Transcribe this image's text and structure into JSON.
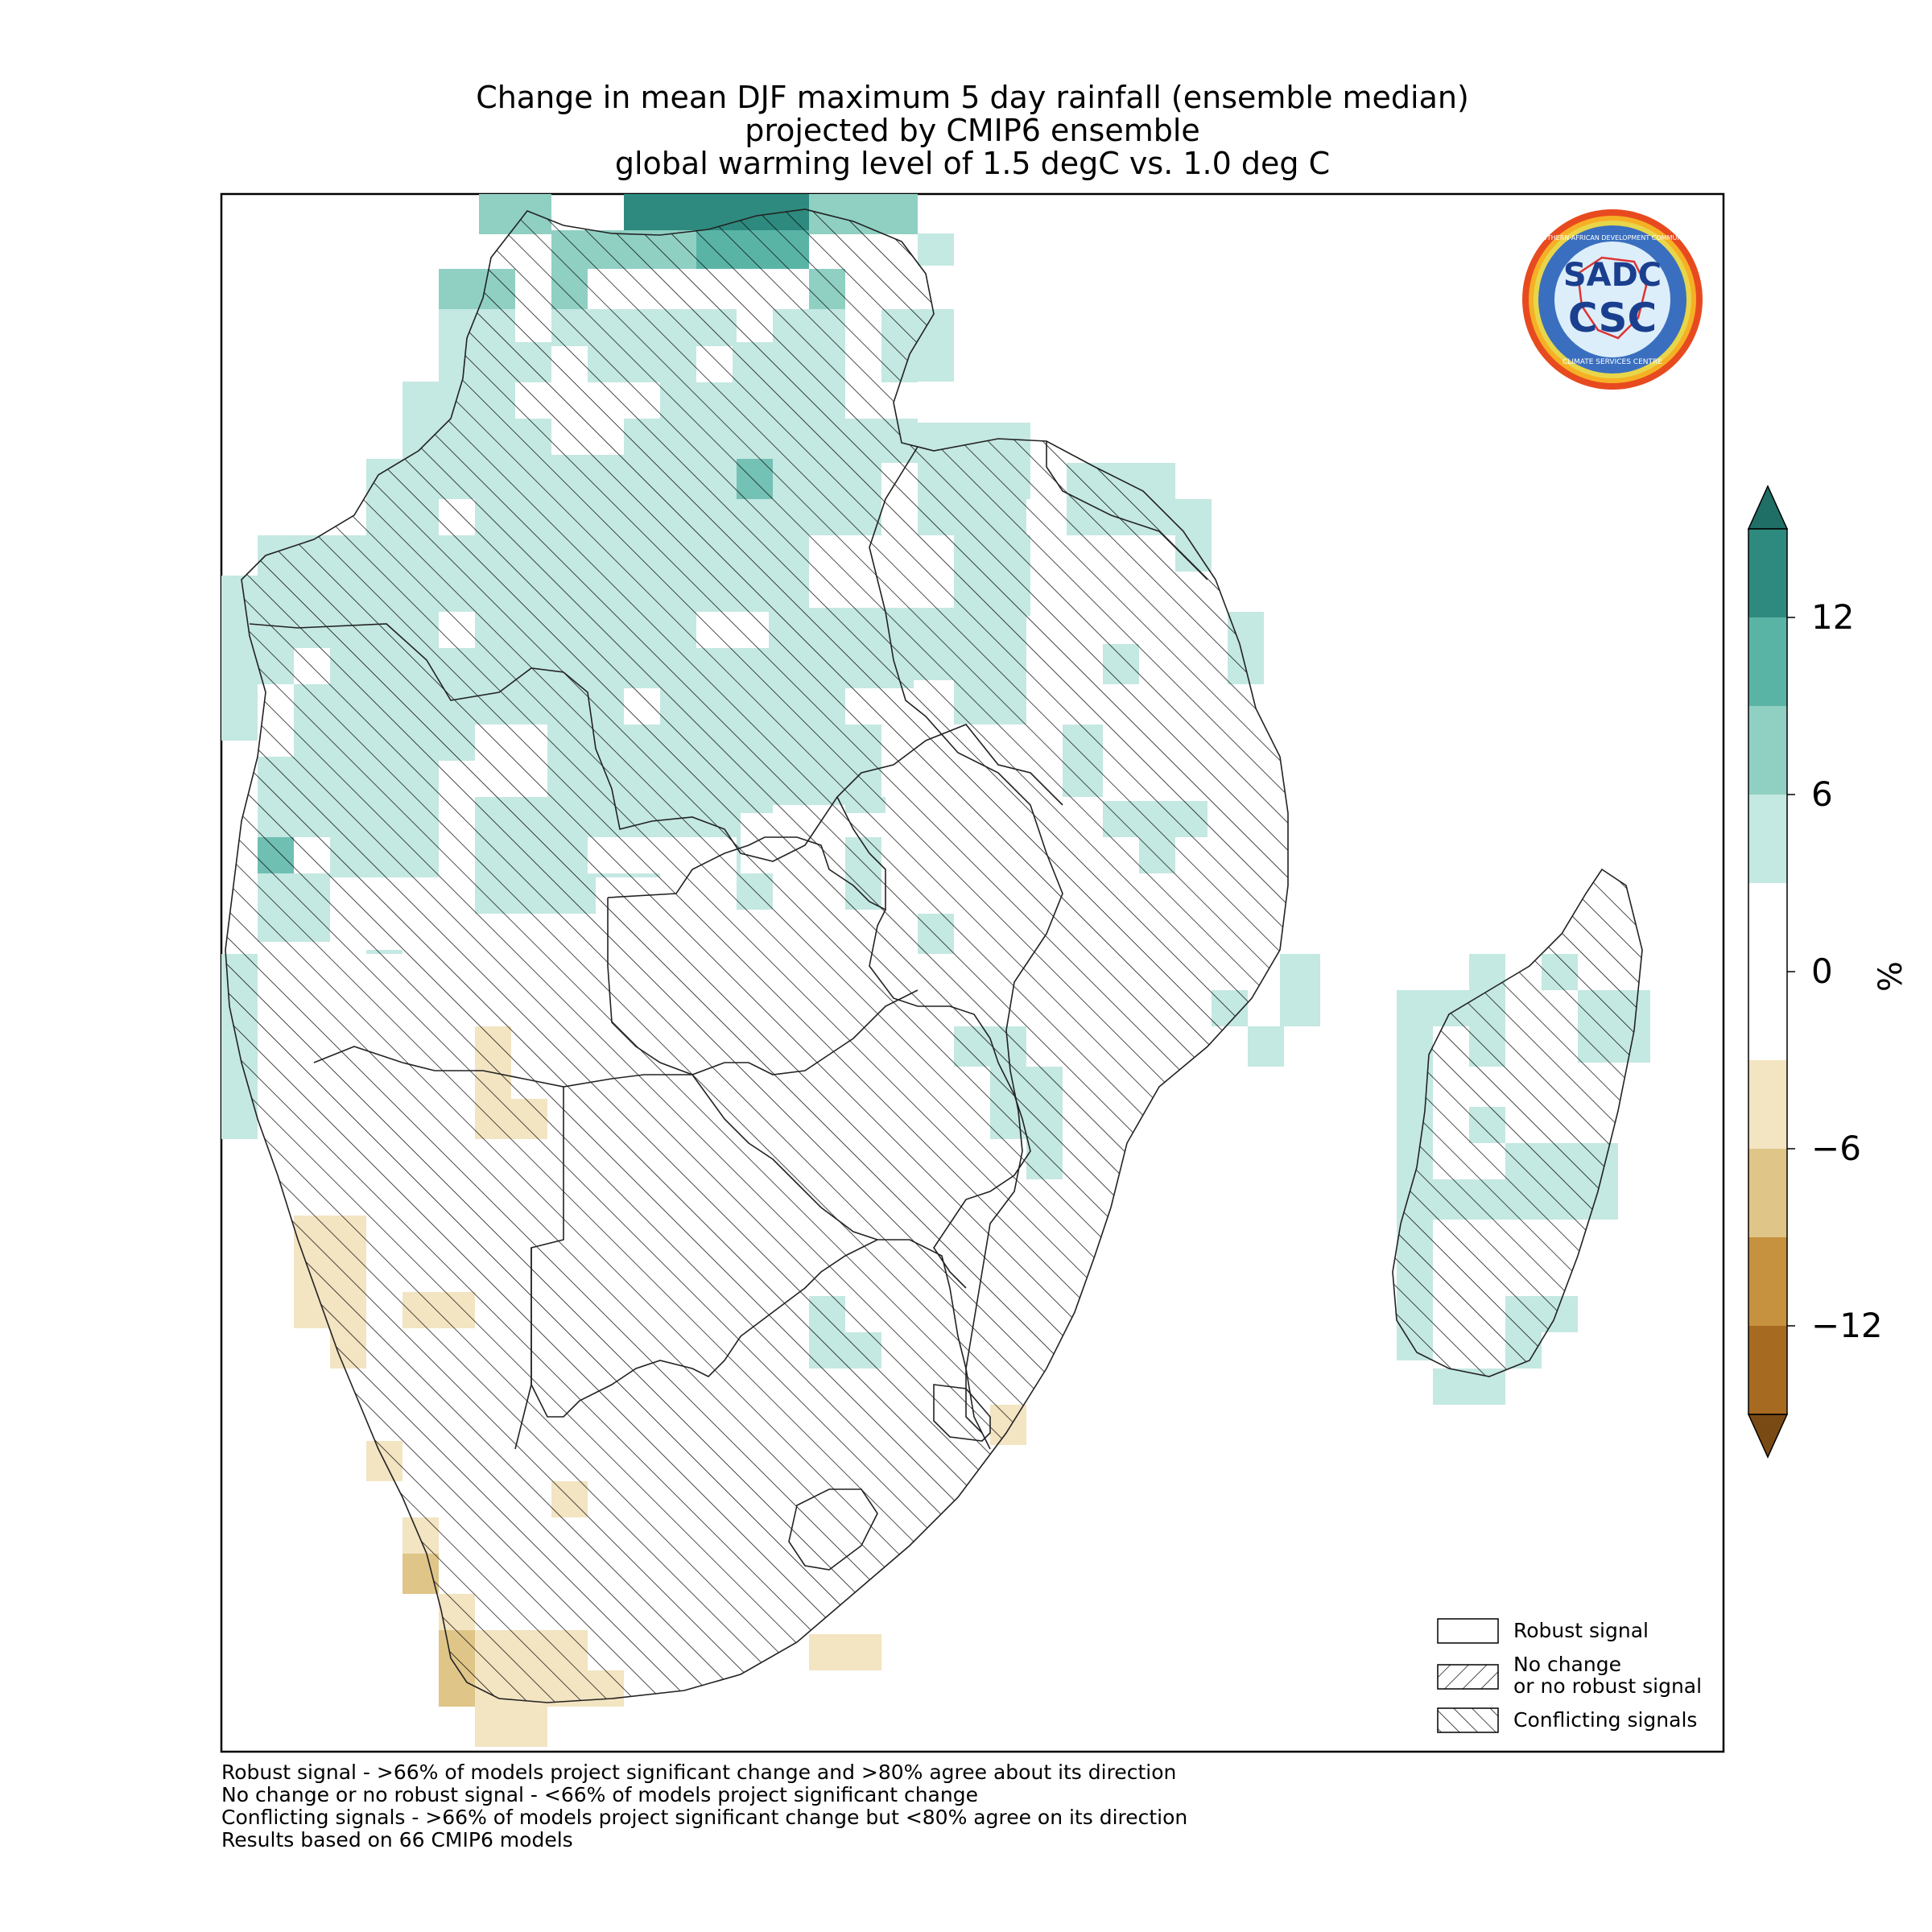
{
  "title": {
    "line1": "Change in mean DJF maximum 5 day rainfall (ensemble median)",
    "line2": "projected by CMIP6 ensemble",
    "line3": "global warming level of 1.5 degC vs. 1.0 deg C"
  },
  "colorbar": {
    "unit": "%",
    "ticks": [
      "12",
      "6",
      "0",
      "−6",
      "−12"
    ],
    "bins": [
      {
        "range": "above 15",
        "color": "#1f6f66"
      },
      {
        "range": "12 to 15",
        "color": "#2e8a7f"
      },
      {
        "range": "9 to 12",
        "color": "#5ab4a6"
      },
      {
        "range": "6 to 9",
        "color": "#8fd0c3"
      },
      {
        "range": "3 to 6",
        "color": "#c4e8e2"
      },
      {
        "range": "-3 to 3",
        "color": "#ffffff"
      },
      {
        "range": "-6 to -3",
        "color": "#f3e4c2"
      },
      {
        "range": "-9 to -6",
        "color": "#dfc588"
      },
      {
        "range": "-12 to -9",
        "color": "#c6923f"
      },
      {
        "range": "-15 to -12",
        "color": "#a66a21"
      },
      {
        "range": "below -15",
        "color": "#7a4a14"
      }
    ]
  },
  "legend": {
    "robust": "Robust signal",
    "no_change_1": "No change",
    "no_change_2": "or no robust signal",
    "conflicting": "Conflicting signals"
  },
  "footnotes": [
    "Robust signal - >66% of models project significant change and >80% agree about its direction",
    "No change or no robust signal - <66% of models project significant change",
    "Conflicting signals - >66% of models project significant change but <80% agree on its direction",
    "Results based on 66 CMIP6 models"
  ],
  "logo": {
    "text_main": "CSC",
    "text_top": "SADC",
    "ring_top": "SOUTHERN AFRICAN DEVELOPMENT COMMUNITY",
    "ring_bottom": "CLIMATE SERVICES CENTRE"
  }
}
